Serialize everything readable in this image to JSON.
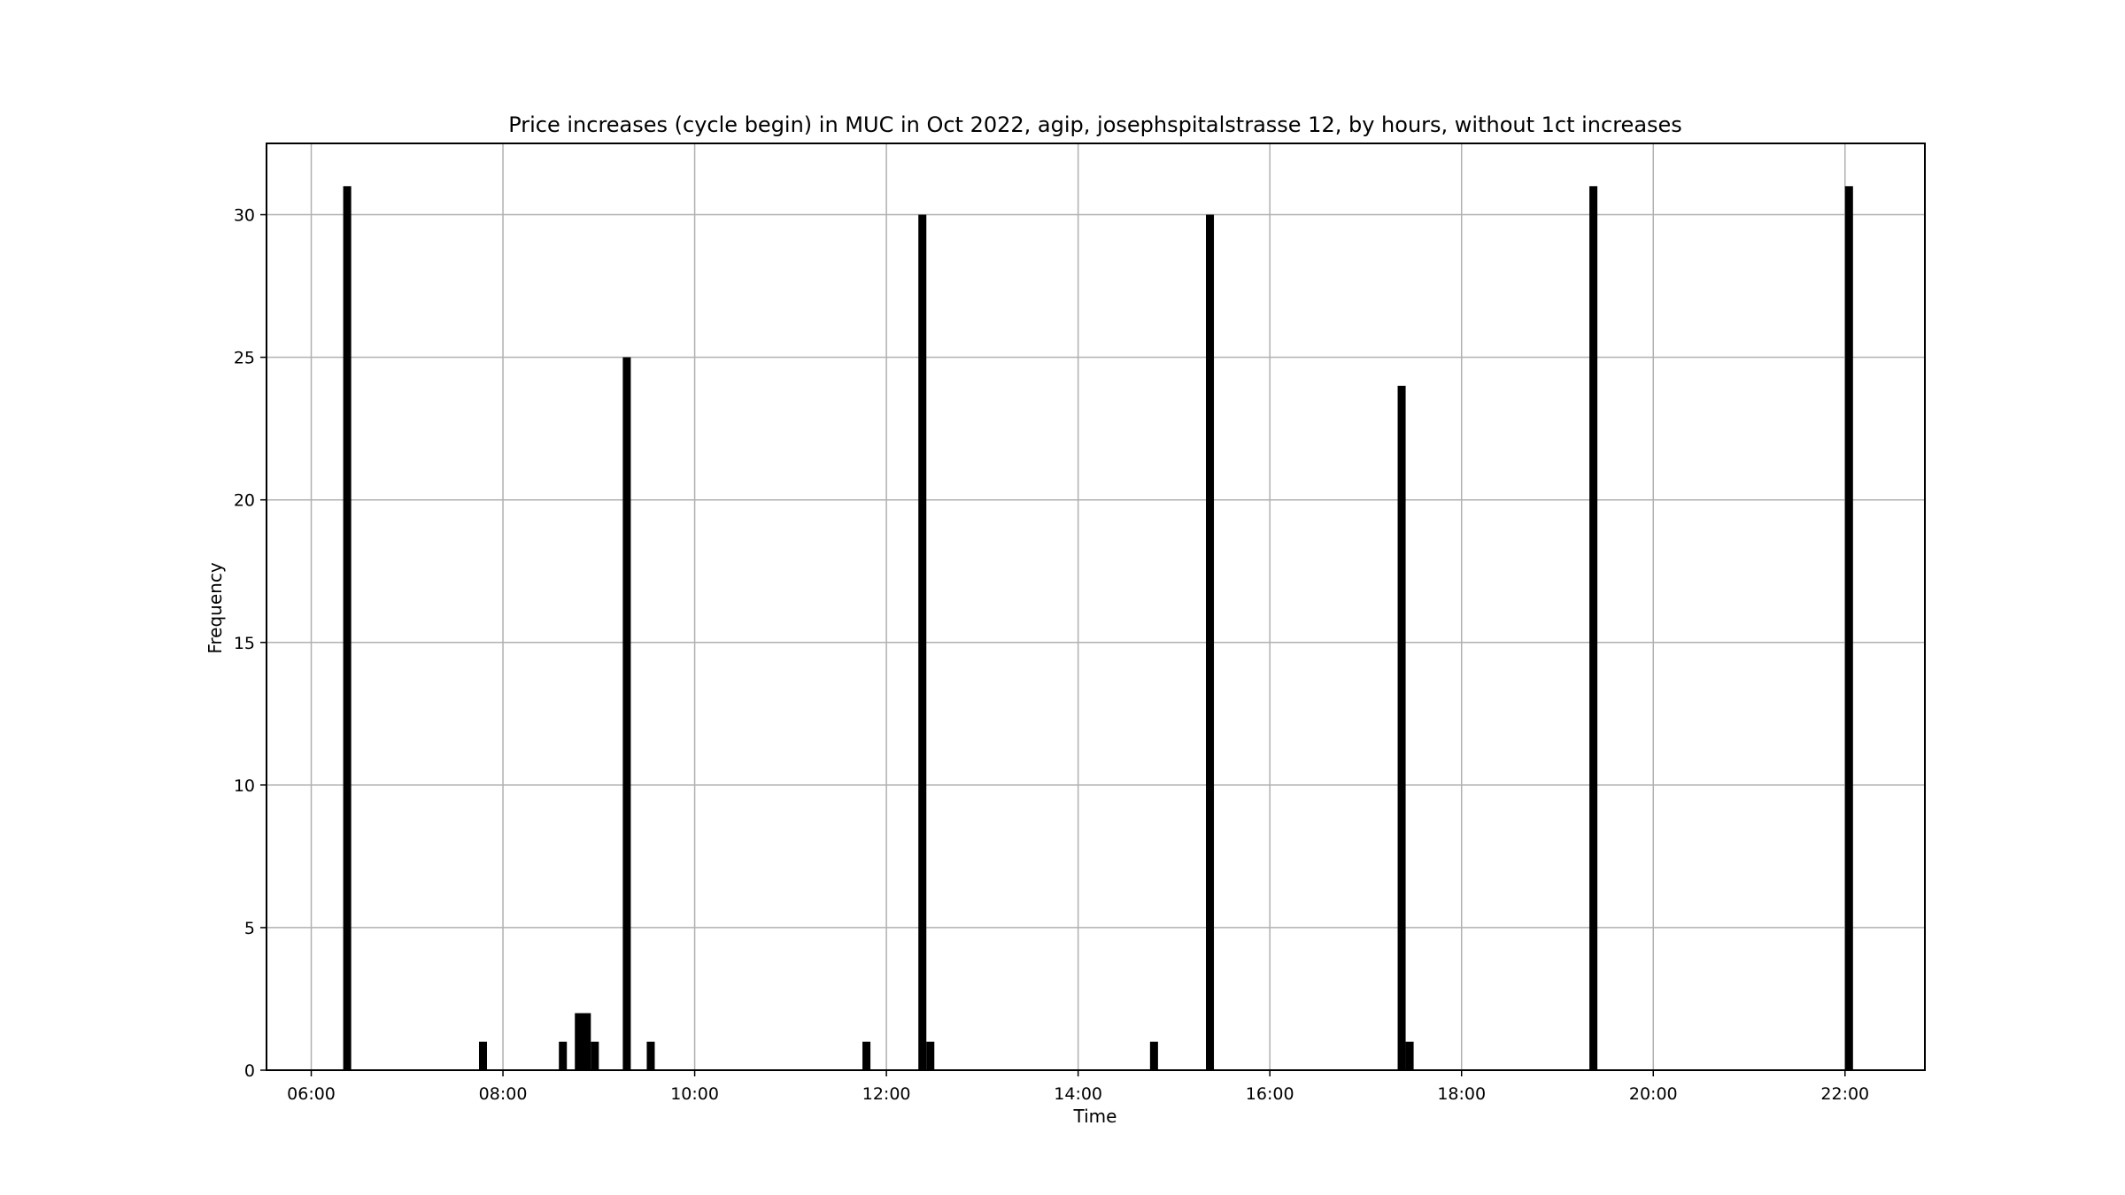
{
  "chart_data": {
    "type": "bar",
    "title": "Price increases (cycle begin) in MUC in Oct 2022, agip, josephspitalstrasse 12, by hours, without 1ct increases",
    "xlabel": "Time",
    "ylabel": "Frequency",
    "xlim": [
      "05:32",
      "22:50"
    ],
    "ylim": [
      0,
      32.5
    ],
    "grid": true,
    "bar_color": "#000000",
    "x_ticks": [
      "06:00",
      "08:00",
      "10:00",
      "12:00",
      "14:00",
      "16:00",
      "18:00",
      "20:00",
      "22:00"
    ],
    "y_ticks": [
      0,
      5,
      10,
      15,
      20,
      25,
      30
    ],
    "bins": [
      {
        "start": "06:20",
        "end": "06:25",
        "value": 31
      },
      {
        "start": "07:45",
        "end": "07:50",
        "value": 1
      },
      {
        "start": "08:35",
        "end": "08:40",
        "value": 1
      },
      {
        "start": "08:45",
        "end": "08:55",
        "value": 2
      },
      {
        "start": "08:55",
        "end": "09:00",
        "value": 1
      },
      {
        "start": "09:15",
        "end": "09:20",
        "value": 25
      },
      {
        "start": "09:30",
        "end": "09:35",
        "value": 1
      },
      {
        "start": "11:45",
        "end": "11:50",
        "value": 1
      },
      {
        "start": "12:20",
        "end": "12:25",
        "value": 30
      },
      {
        "start": "12:25",
        "end": "12:30",
        "value": 1
      },
      {
        "start": "14:45",
        "end": "14:50",
        "value": 1
      },
      {
        "start": "15:20",
        "end": "15:25",
        "value": 30
      },
      {
        "start": "17:20",
        "end": "17:25",
        "value": 24
      },
      {
        "start": "17:25",
        "end": "17:30",
        "value": 1
      },
      {
        "start": "19:20",
        "end": "19:25",
        "value": 31
      },
      {
        "start": "22:00",
        "end": "22:05",
        "value": 31
      }
    ]
  }
}
